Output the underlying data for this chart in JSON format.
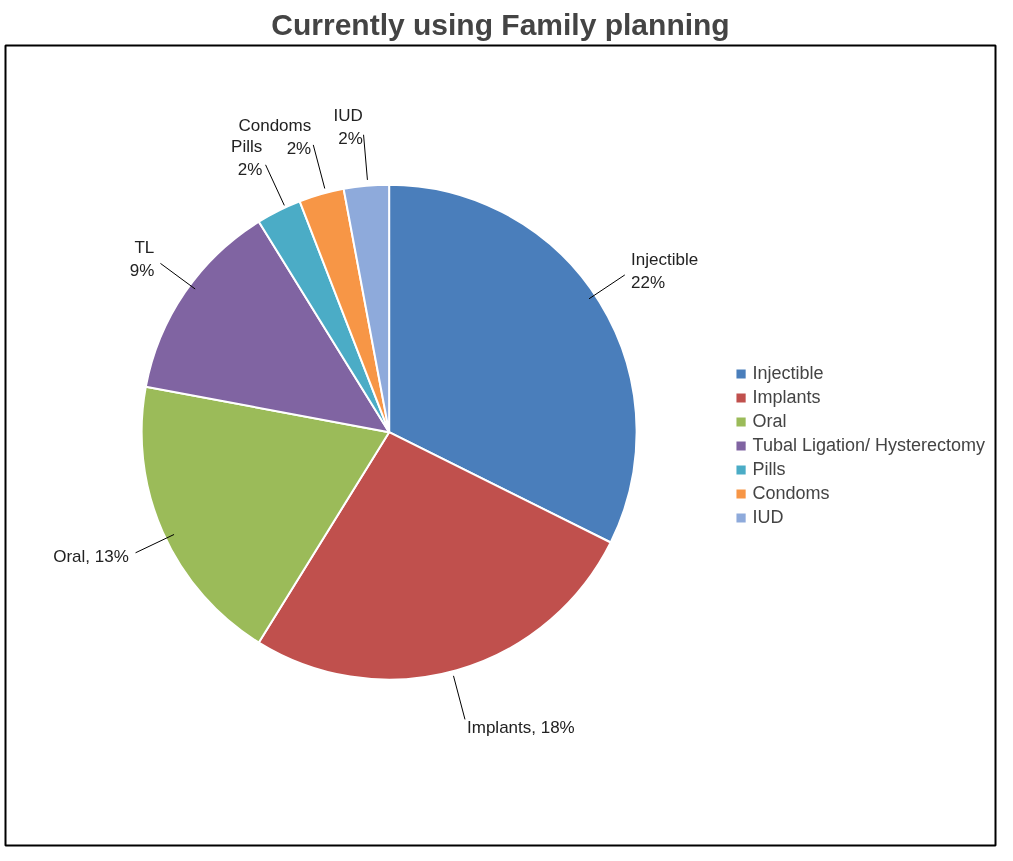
{
  "chart_data": {
    "type": "pie",
    "title": "Currently using Family planning",
    "categories": [
      "Injectible",
      "Implants",
      "Oral",
      "Tubal Ligation/ Hysterectomy",
      "Pills",
      "Condoms",
      "IUD"
    ],
    "values": [
      22,
      18,
      13,
      9,
      2,
      2,
      2
    ],
    "colors": [
      "#4a7ebb",
      "#c0504d",
      "#9bbb59",
      "#8064a2",
      "#4bacc6",
      "#f79646",
      "#8eaadb"
    ],
    "value_labels": [
      "Injectible\n22%",
      "Implants, 18%",
      "Oral, 13%",
      "TL\n9%",
      "Pills\n2%",
      "Condoms\n2%",
      "IUD\n2%"
    ],
    "legend": "right"
  }
}
